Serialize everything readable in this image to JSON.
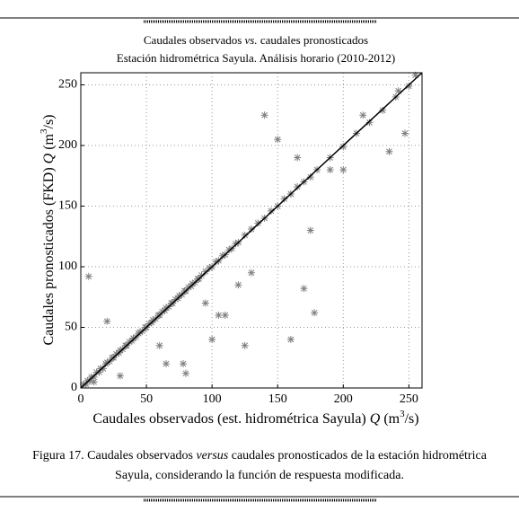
{
  "chart_data": {
    "type": "scatter",
    "title_parts": [
      "Caudales observados ",
      "vs.",
      " caudales pronosticados"
    ],
    "subtitle": "Estación hidrométrica Sayula. Análisis horario (2010-2012)",
    "x_label_parts": [
      "Caudales observados (est. hidrométrica Sayula) ",
      "Q",
      " (m",
      "3",
      "/s)"
    ],
    "y_label_parts": [
      "Caudales pronosticados (FKD) ",
      "Q",
      " (m",
      "3",
      "/s)"
    ],
    "xlim": [
      0,
      260
    ],
    "ylim": [
      0,
      260
    ],
    "xticks": [
      0,
      50,
      100,
      150,
      200,
      250
    ],
    "yticks": [
      0,
      50,
      100,
      150,
      200,
      250
    ],
    "grid": true,
    "series": [
      {
        "color": "#808080",
        "x": [
          2,
          4,
          5,
          7,
          8,
          10,
          12,
          14,
          15,
          17,
          19,
          20,
          22,
          24,
          25,
          27,
          29,
          30,
          32,
          34,
          35,
          37,
          39,
          40,
          42,
          44,
          45,
          47,
          49,
          50,
          52,
          54,
          55,
          57,
          59,
          60,
          62,
          64,
          65,
          67,
          69,
          70,
          72,
          74,
          75,
          77,
          79,
          80,
          82,
          84,
          85,
          87,
          89,
          90,
          92,
          95,
          98,
          100,
          103,
          105,
          108,
          110,
          113,
          115,
          118,
          120,
          125,
          130,
          135,
          140,
          145,
          150,
          155,
          160,
          165,
          170,
          175,
          180,
          190,
          200,
          210,
          220,
          230,
          240,
          250,
          255,
          6,
          10,
          20,
          30,
          60,
          65,
          80,
          78,
          100,
          110,
          120,
          130,
          160,
          170,
          178,
          175,
          190,
          200,
          215,
          235,
          242,
          247,
          160,
          150,
          165,
          140,
          95,
          105,
          125
        ],
        "values": [
          3,
          3,
          6,
          6,
          9,
          9,
          13,
          13,
          16,
          16,
          20,
          21,
          22,
          25,
          25,
          28,
          29,
          31,
          32,
          35,
          35,
          38,
          39,
          41,
          42,
          45,
          46,
          47,
          50,
          50,
          53,
          54,
          56,
          57,
          60,
          60,
          63,
          64,
          66,
          67,
          70,
          70,
          73,
          74,
          76,
          77,
          80,
          80,
          83,
          84,
          86,
          87,
          90,
          90,
          93,
          96,
          99,
          100,
          104,
          105,
          109,
          110,
          114,
          115,
          119,
          120,
          126,
          131,
          136,
          140,
          146,
          150,
          156,
          160,
          166,
          170,
          174,
          180,
          190,
          199,
          210,
          219,
          229,
          240,
          249,
          258,
          92,
          5,
          55,
          10,
          35,
          20,
          12,
          20,
          40,
          60,
          85,
          95,
          40,
          82,
          62,
          130,
          180,
          180,
          225,
          195,
          245,
          210,
          160,
          205,
          190,
          225,
          70,
          60,
          35
        ]
      }
    ]
  },
  "caption_parts": [
    "Figura 17. Caudales observados ",
    "versus",
    " caudales pronosticados de la estación hidrométrica",
    "Sayula, considerando  la función de respuesta modificada."
  ]
}
